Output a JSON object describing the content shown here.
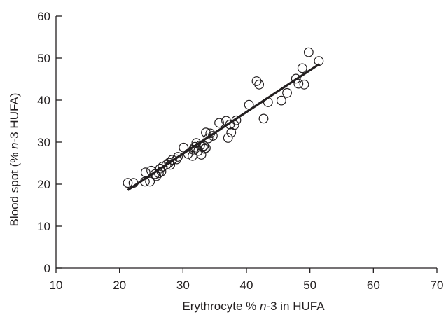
{
  "chart_data": {
    "type": "scatter",
    "title": "",
    "xlabel_parts": [
      "Erythrocyte % ",
      "n",
      "-3 in HUFA"
    ],
    "ylabel_parts": [
      "Blood spot (% ",
      "n",
      "-3 HUFA)"
    ],
    "xlim": [
      10,
      70
    ],
    "ylim": [
      0,
      60
    ],
    "xticks": [
      10,
      20,
      30,
      40,
      50,
      60,
      70
    ],
    "yticks": [
      0,
      10,
      20,
      30,
      40,
      50,
      60
    ],
    "grid": false,
    "legend": "none",
    "points": [
      [
        21.3,
        20.3
      ],
      [
        22.2,
        20.3
      ],
      [
        24.1,
        22.8
      ],
      [
        24.0,
        20.6
      ],
      [
        24.8,
        20.6
      ],
      [
        25.0,
        23.2
      ],
      [
        25.6,
        22.4
      ],
      [
        25.8,
        21.9
      ],
      [
        26.2,
        22.6
      ],
      [
        26.4,
        23.7
      ],
      [
        26.6,
        23.0
      ],
      [
        26.8,
        24.2
      ],
      [
        27.4,
        24.6
      ],
      [
        27.8,
        25.1
      ],
      [
        28.0,
        24.6
      ],
      [
        28.3,
        25.8
      ],
      [
        29.0,
        25.9
      ],
      [
        29.2,
        26.5
      ],
      [
        30.1,
        28.7
      ],
      [
        30.8,
        27.2
      ],
      [
        31.5,
        26.7
      ],
      [
        31.6,
        28.2
      ],
      [
        31.9,
        28.9
      ],
      [
        32.1,
        29.8
      ],
      [
        32.4,
        27.9
      ],
      [
        32.7,
        29.2
      ],
      [
        32.9,
        27.0
      ],
      [
        33.1,
        28.9
      ],
      [
        33.3,
        29.1
      ],
      [
        33.4,
        28.4
      ],
      [
        33.6,
        28.6
      ],
      [
        33.6,
        32.3
      ],
      [
        34.0,
        30.9
      ],
      [
        34.3,
        32.1
      ],
      [
        34.7,
        31.5
      ],
      [
        35.7,
        34.6
      ],
      [
        36.8,
        35.1
      ],
      [
        37.1,
        31.0
      ],
      [
        37.4,
        34.2
      ],
      [
        37.6,
        32.3
      ],
      [
        38.1,
        34.1
      ],
      [
        38.4,
        35.2
      ],
      [
        40.4,
        38.9
      ],
      [
        41.6,
        44.5
      ],
      [
        42.0,
        43.7
      ],
      [
        42.7,
        35.6
      ],
      [
        43.4,
        39.5
      ],
      [
        45.5,
        39.9
      ],
      [
        46.4,
        41.7
      ],
      [
        47.8,
        45.1
      ],
      [
        48.2,
        43.9
      ],
      [
        48.8,
        47.6
      ],
      [
        49.1,
        43.7
      ],
      [
        49.8,
        51.4
      ],
      [
        51.4,
        49.3
      ]
    ],
    "fit_line": {
      "x": [
        21.3,
        51.5
      ],
      "y": [
        18.6,
        48.6
      ]
    }
  }
}
